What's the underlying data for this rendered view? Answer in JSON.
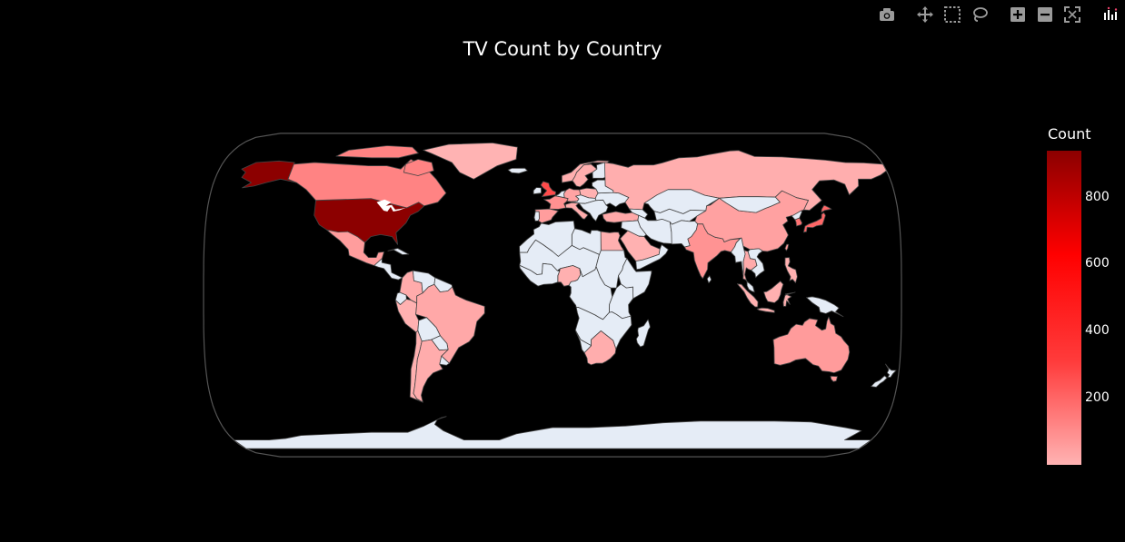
{
  "toolbar": {
    "buttons": [
      {
        "icon": "camera-icon",
        "title": "Download plot as a png"
      },
      {
        "icon": "pan-icon",
        "title": "Pan"
      },
      {
        "icon": "box-select-icon",
        "title": "Box Select"
      },
      {
        "icon": "lasso-select-icon",
        "title": "Lasso Select"
      },
      {
        "icon": "zoom-in-icon",
        "title": "Zoom in"
      },
      {
        "icon": "zoom-out-icon",
        "title": "Zoom out"
      },
      {
        "icon": "reset-icon",
        "title": "Reset"
      },
      {
        "icon": "plotly-logo-icon",
        "title": "Produced with Plotly"
      }
    ]
  },
  "chart_data": {
    "type": "choropleth",
    "title": "TV Count by Country",
    "projection": "natural earth",
    "colorbar": {
      "title": "Count",
      "range": [
        1,
        940
      ],
      "ticks": [
        200,
        400,
        600,
        800
      ],
      "colorscale": [
        "#ffb3b3",
        "#ff3b3b",
        "#ff0000",
        "#8b0000"
      ]
    },
    "no_data_color": "#e5ecf6",
    "locations": [
      {
        "country": "United States",
        "value": 938
      },
      {
        "country": "Canada",
        "value": 126
      },
      {
        "country": "United Kingdom",
        "value": 272
      },
      {
        "country": "Japan",
        "value": 199
      },
      {
        "country": "South Korea",
        "value": 170
      },
      {
        "country": "India",
        "value": 84
      },
      {
        "country": "Taiwan",
        "value": 70
      },
      {
        "country": "France",
        "value": 90
      },
      {
        "country": "Australia",
        "value": 64
      },
      {
        "country": "China",
        "value": 48
      },
      {
        "country": "Spain",
        "value": 58
      },
      {
        "country": "Mexico",
        "value": 58
      },
      {
        "country": "Germany",
        "value": 44
      },
      {
        "country": "Russia",
        "value": 14
      },
      {
        "country": "Brazil",
        "value": 29
      },
      {
        "country": "Turkey",
        "value": 30
      },
      {
        "country": "Argentina",
        "value": 20
      },
      {
        "country": "Colombia",
        "value": 23
      },
      {
        "country": "Nigeria",
        "value": 9
      },
      {
        "country": "South Africa",
        "value": 16
      },
      {
        "country": "Egypt",
        "value": 12
      },
      {
        "country": "Thailand",
        "value": 24
      },
      {
        "country": "Indonesia",
        "value": 10
      },
      {
        "country": "Philippines",
        "value": 8
      },
      {
        "country": "Saudi Arabia",
        "value": 6
      },
      {
        "country": "Peru",
        "value": 5
      },
      {
        "country": "Chile",
        "value": 10
      },
      {
        "country": "Norway",
        "value": 12
      },
      {
        "country": "Sweden",
        "value": 14
      },
      {
        "country": "Italy",
        "value": 18
      },
      {
        "country": "Poland",
        "value": 6
      },
      {
        "country": "Greenland",
        "value": 1
      }
    ]
  }
}
